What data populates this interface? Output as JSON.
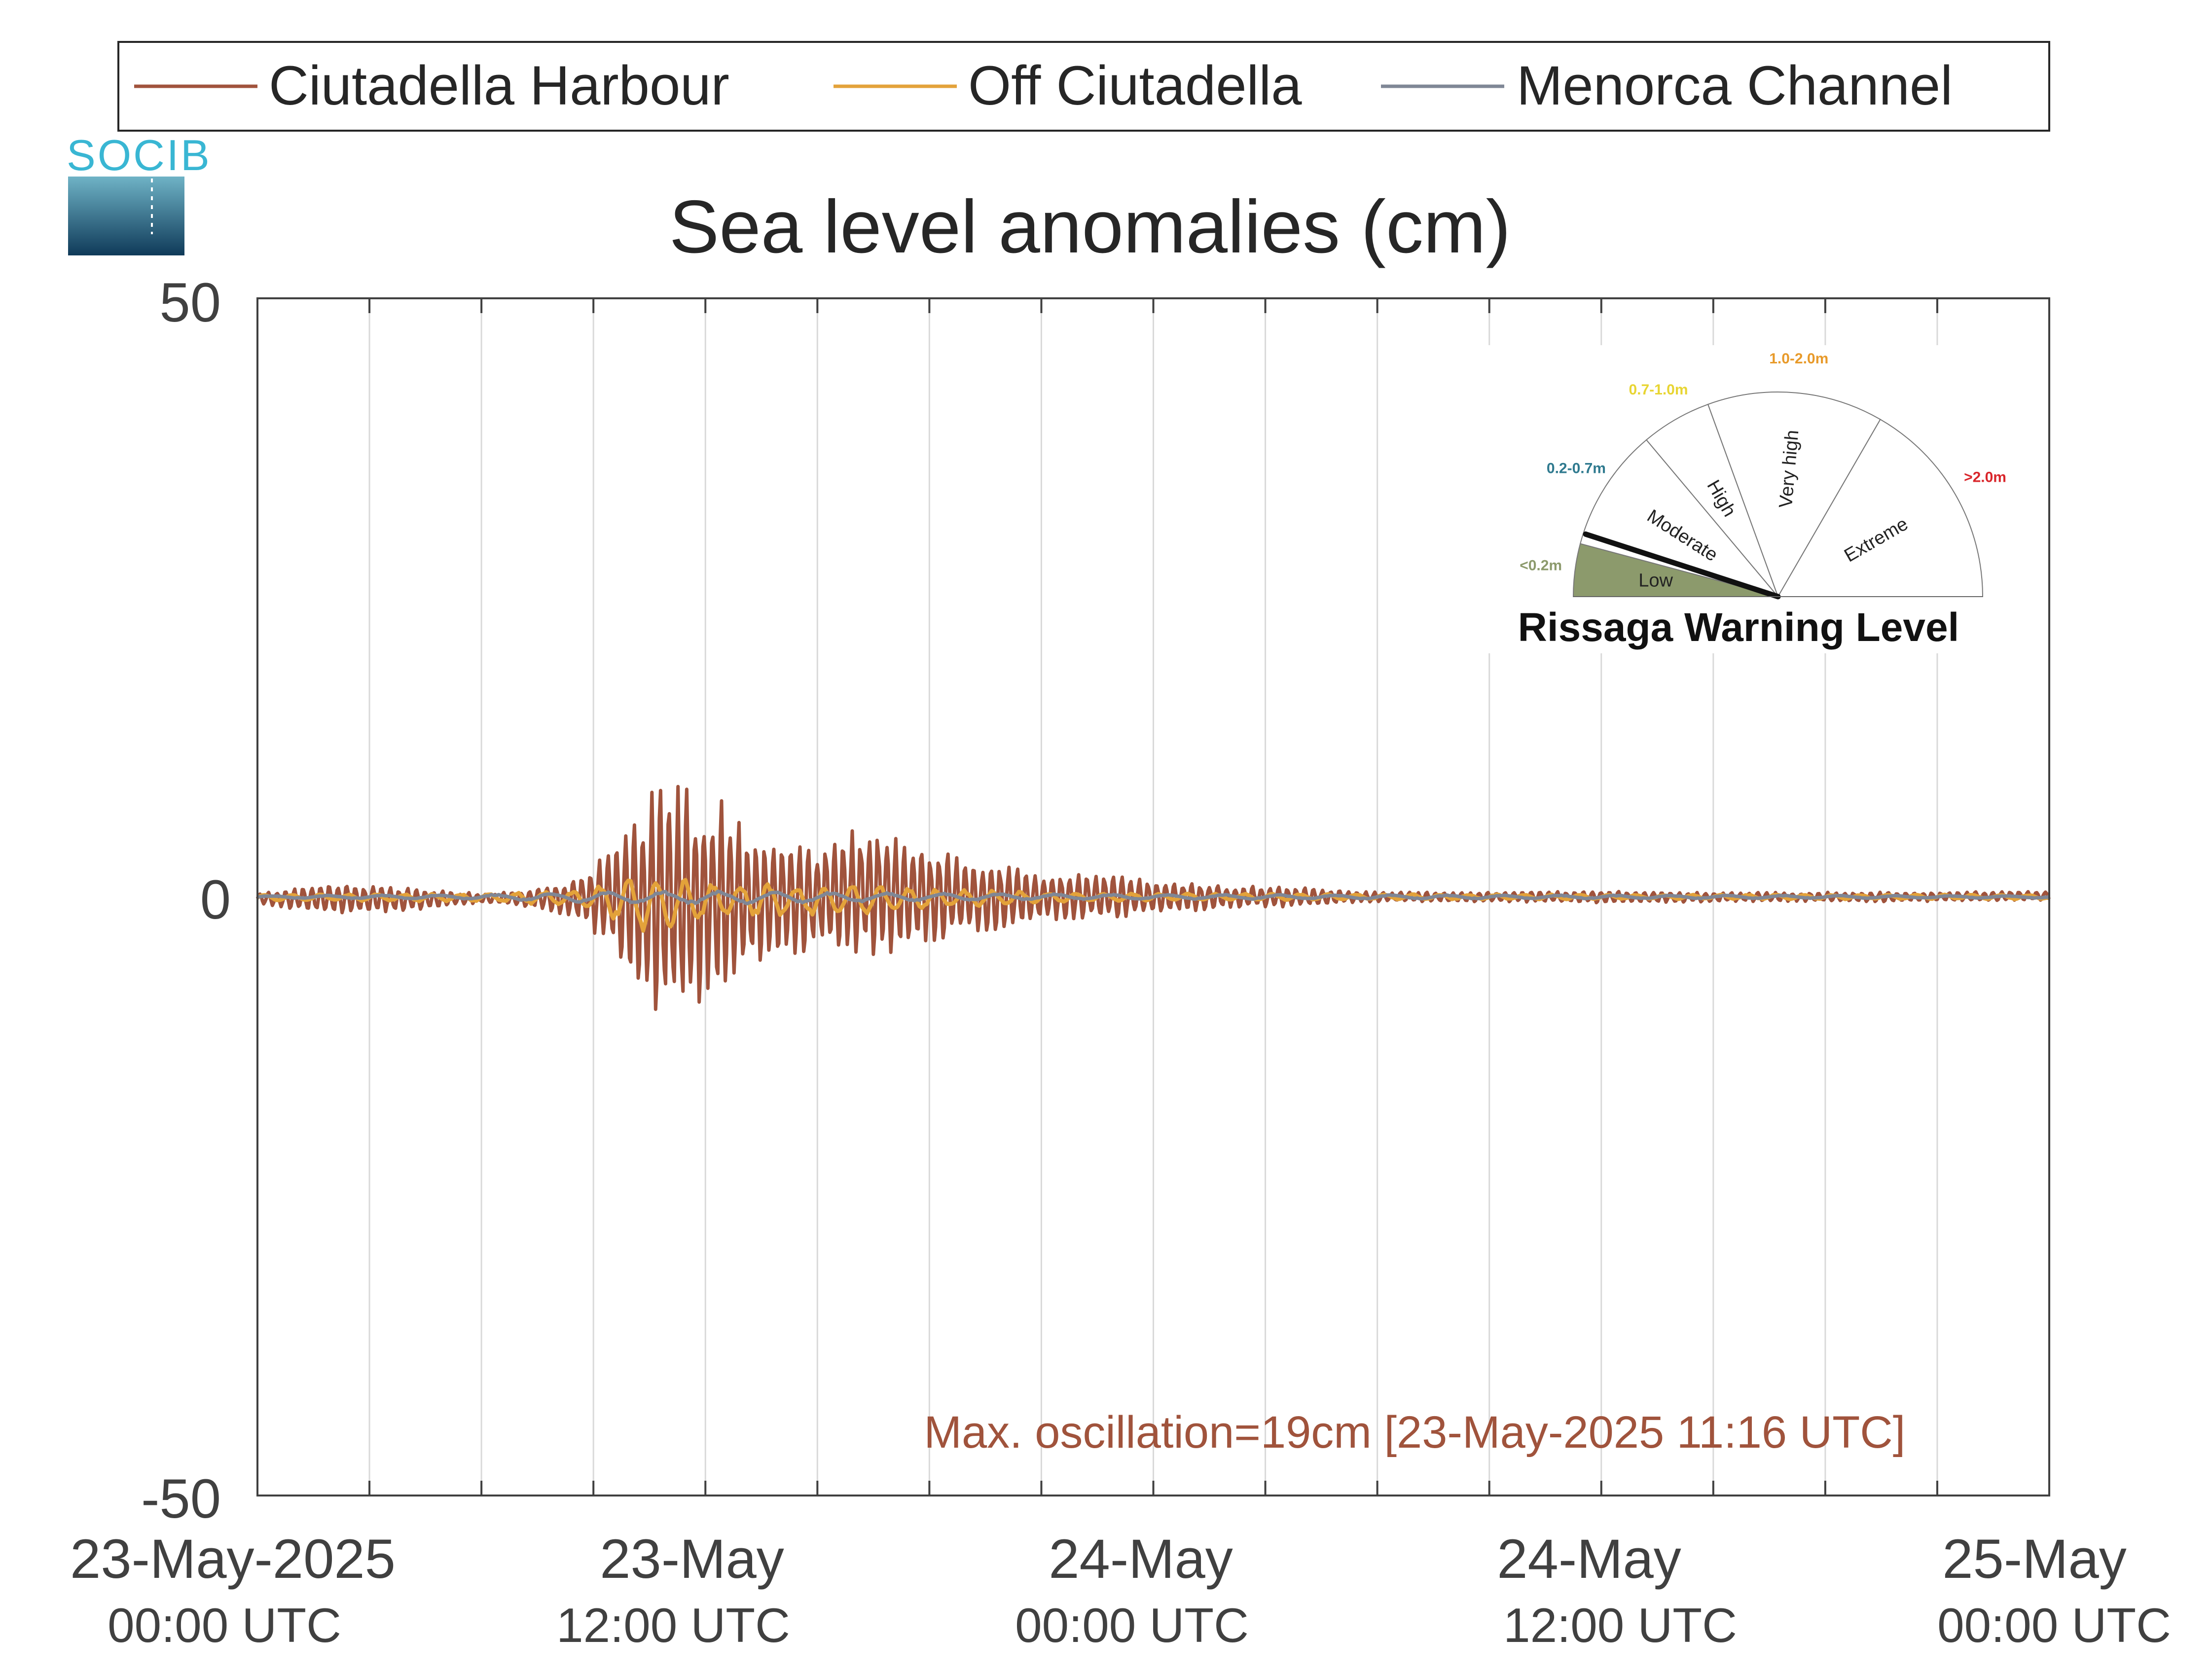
{
  "colors": {
    "ciutadella_harbour": "#a0533c",
    "off_ciutadella": "#e3a23a",
    "menorca_channel": "#7f8796",
    "axis": "#404040",
    "grid": "#d9d9d9",
    "annotation": "#a0533c",
    "gauge_low_fill": "#8c9a6c",
    "range_low": "#8c9a6c",
    "range_moderate": "#2f7a8f",
    "range_high": "#e8d533",
    "range_very_high": "#e89a2a",
    "range_extreme": "#d9262b",
    "logo": "#39b6d3"
  },
  "logo": {
    "text": "SOCIB"
  },
  "chart_data": {
    "type": "line",
    "title": "Sea level anomalies (cm)",
    "xlabel": "",
    "ylabel": "",
    "ylim": [
      -50,
      50
    ],
    "xlim": [
      "2025-05-23T00:00",
      "2025-05-25T00:00"
    ],
    "yticks": [
      "-50",
      "0",
      "50"
    ],
    "grid": "vertical",
    "legend_position": "top",
    "xticks": [
      {
        "at": "2025-05-23T00:00",
        "label": "23-May-2025",
        "sublabel": "00:00 UTC"
      },
      {
        "at": "2025-05-23T12:00",
        "label": "23-May",
        "sublabel": "12:00 UTC"
      },
      {
        "at": "2025-05-24T00:00",
        "label": "24-May",
        "sublabel": "00:00 UTC"
      },
      {
        "at": "2025-05-24T12:00",
        "label": "24-May",
        "sublabel": "12:00 UTC"
      },
      {
        "at": "2025-05-25T00:00",
        "label": "25-May",
        "sublabel": "00:00 UTC"
      }
    ],
    "series": [
      {
        "name": "Ciutadella Harbour",
        "color": "#a0533c",
        "envelope": {
          "x": [
            "2025-05-23T00:00",
            "2025-05-23T02:00",
            "2025-05-23T04:00",
            "2025-05-23T06:00",
            "2025-05-23T07:30",
            "2025-05-23T08:30",
            "2025-05-23T09:30",
            "2025-05-23T10:30",
            "2025-05-23T11:16",
            "2025-05-23T12:30",
            "2025-05-23T13:30",
            "2025-05-23T15:00",
            "2025-05-23T16:30",
            "2025-05-23T18:00",
            "2025-05-23T19:30",
            "2025-05-23T21:00",
            "2025-05-23T22:30",
            "2025-05-24T00:00",
            "2025-05-24T02:00",
            "2025-05-24T04:00",
            "2025-05-24T06:00",
            "2025-05-24T08:00",
            "2025-05-24T12:00",
            "2025-05-24T16:00",
            "2025-05-24T20:00",
            "2025-05-25T00:00"
          ],
          "upper": [
            0.3,
            1.2,
            0.8,
            0.3,
            0.7,
            1.5,
            4.5,
            9.0,
            9.5,
            8.5,
            5.0,
            4.5,
            6.5,
            4.0,
            3.0,
            2.0,
            2.0,
            1.5,
            1.0,
            0.8,
            0.4,
            0.4,
            0.5,
            0.4,
            0.4,
            0.5
          ],
          "lower": [
            -0.6,
            -1.5,
            -1.2,
            -0.5,
            -0.9,
            -1.8,
            -4.5,
            -9.5,
            -10.5,
            -8.5,
            -5.5,
            -4.5,
            -5.5,
            -4.0,
            -3.0,
            -2.0,
            -2.0,
            -1.5,
            -1.0,
            -0.8,
            -0.4,
            -0.4,
            -0.5,
            -0.4,
            -0.4,
            -0.3
          ]
        }
      },
      {
        "name": "Off Ciutadella",
        "color": "#e3a23a",
        "envelope": {
          "x": [
            "2025-05-23T00:00",
            "2025-05-23T06:00",
            "2025-05-23T08:30",
            "2025-05-23T09:30",
            "2025-05-23T10:30",
            "2025-05-23T11:30",
            "2025-05-23T12:30",
            "2025-05-23T14:00",
            "2025-05-23T16:00",
            "2025-05-23T18:00",
            "2025-05-23T21:00",
            "2025-05-24T00:00",
            "2025-05-24T12:00",
            "2025-05-25T00:00"
          ],
          "upper": [
            0.2,
            0.3,
            0.6,
            1.5,
            1.8,
            1.5,
            1.3,
            1.2,
            1.0,
            0.7,
            0.4,
            0.3,
            0.2,
            0.2
          ],
          "lower": [
            -0.3,
            -0.4,
            -0.8,
            -2.0,
            -3.2,
            -2.5,
            -1.8,
            -1.8,
            -1.5,
            -1.0,
            -0.5,
            -0.3,
            -0.2,
            -0.2
          ]
        }
      },
      {
        "name": "Menorca Channel",
        "color": "#7f8796",
        "envelope": {
          "x": [
            "2025-05-23T00:00",
            "2025-05-23T06:00",
            "2025-05-23T09:00",
            "2025-05-23T12:00",
            "2025-05-23T15:00",
            "2025-05-23T18:00",
            "2025-05-24T00:00",
            "2025-05-24T12:00",
            "2025-05-25T00:00"
          ],
          "upper": [
            0.1,
            0.2,
            0.4,
            0.5,
            0.4,
            0.3,
            0.2,
            0.15,
            0.1
          ],
          "lower": [
            -0.1,
            -0.2,
            -0.5,
            -0.6,
            -0.5,
            -0.3,
            -0.2,
            -0.15,
            -0.1
          ]
        }
      }
    ],
    "annotations": [
      {
        "text": "Max. oscillation=19cm [23-May-2025 11:16 UTC]",
        "color": "#a0533c",
        "x": "2025-05-24T07:00",
        "y": -46
      }
    ]
  },
  "gauge": {
    "title": "Rissaga Warning Level",
    "current_level": "Low",
    "needle_fraction": 0.1,
    "sectors": [
      {
        "label": "Low",
        "range": "<0.2m",
        "range_color": "#8c9a6c"
      },
      {
        "label": "Moderate",
        "range": "0.2-0.7m",
        "range_color": "#2f7a8f"
      },
      {
        "label": "High",
        "range": "0.7-1.0m",
        "range_color": "#e8d533"
      },
      {
        "label": "Very high",
        "range": "1.0-2.0m",
        "range_color": "#e89a2a"
      },
      {
        "label": "Extreme",
        "range": ">2.0m",
        "range_color": "#d9262b"
      }
    ]
  }
}
